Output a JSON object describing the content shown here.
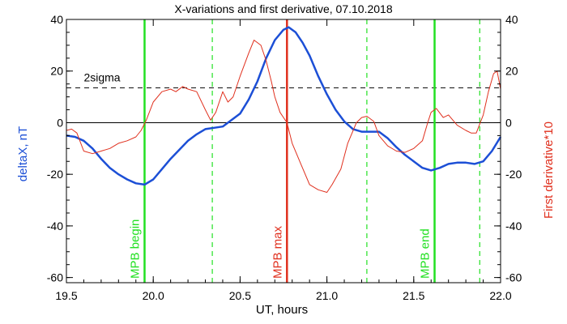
{
  "chart_data": {
    "type": "line",
    "title": "X-variations and first derivative, 07.10.2018",
    "xlabel": "UT, hours",
    "ylabel_left": "deltaX, nT",
    "ylabel_right": "First derivative*10",
    "xlim": [
      19.5,
      22.0
    ],
    "ylim": [
      -62,
      40
    ],
    "x_ticks": [
      "19.5",
      "20.0",
      "20.5",
      "21.0",
      "21.5",
      "22.0"
    ],
    "y_ticks_left": [
      "40",
      "20",
      "0",
      "-20",
      "-40",
      "-60"
    ],
    "y_ticks_right": [
      "40",
      "20",
      "0",
      "-20",
      "-40",
      "-60"
    ],
    "colors": {
      "deltaX": "#1c4fd6",
      "derivative": "#e0301e",
      "mpb": "#22e022",
      "mpb_max": "#e0301e",
      "threshold": "#000000",
      "zero": "#000000"
    },
    "threshold": {
      "label": "2sigma",
      "value": 13.5
    },
    "zero_line": 0,
    "markers": [
      {
        "x": 19.95,
        "label": "MPB begin",
        "style": "solid",
        "color_key": "mpb"
      },
      {
        "x": 20.34,
        "label": "",
        "style": "dashed",
        "color_key": "mpb"
      },
      {
        "x": 20.77,
        "label": "MPB max",
        "style": "solid",
        "color_key": "mpb_max"
      },
      {
        "x": 21.23,
        "label": "",
        "style": "dashed",
        "color_key": "mpb"
      },
      {
        "x": 21.62,
        "label": "MPB end",
        "style": "solid",
        "color_key": "mpb"
      },
      {
        "x": 21.88,
        "label": "",
        "style": "dashed",
        "color_key": "mpb"
      }
    ],
    "series": [
      {
        "key": "deltaX",
        "axis": "left",
        "width": 2.5,
        "points": [
          [
            19.5,
            -5
          ],
          [
            19.55,
            -5.5
          ],
          [
            19.6,
            -7
          ],
          [
            19.65,
            -10
          ],
          [
            19.7,
            -14
          ],
          [
            19.75,
            -17.5
          ],
          [
            19.8,
            -20
          ],
          [
            19.85,
            -22
          ],
          [
            19.9,
            -23.5
          ],
          [
            19.95,
            -24
          ],
          [
            20.0,
            -22
          ],
          [
            20.05,
            -18
          ],
          [
            20.1,
            -14
          ],
          [
            20.15,
            -10.5
          ],
          [
            20.2,
            -7
          ],
          [
            20.25,
            -4.5
          ],
          [
            20.3,
            -2.5
          ],
          [
            20.35,
            -2
          ],
          [
            20.4,
            -1.5
          ],
          [
            20.45,
            1
          ],
          [
            20.5,
            3.5
          ],
          [
            20.55,
            9
          ],
          [
            20.6,
            16
          ],
          [
            20.65,
            25
          ],
          [
            20.7,
            32
          ],
          [
            20.75,
            36
          ],
          [
            20.78,
            37
          ],
          [
            20.82,
            35
          ],
          [
            20.86,
            31
          ],
          [
            20.9,
            26
          ],
          [
            20.95,
            18
          ],
          [
            21.0,
            11
          ],
          [
            21.05,
            5
          ],
          [
            21.1,
            0.5
          ],
          [
            21.15,
            -2.5
          ],
          [
            21.2,
            -3.5
          ],
          [
            21.25,
            -3.5
          ],
          [
            21.3,
            -3.5
          ],
          [
            21.35,
            -6
          ],
          [
            21.4,
            -9.5
          ],
          [
            21.45,
            -12.5
          ],
          [
            21.5,
            -15
          ],
          [
            21.55,
            -17.5
          ],
          [
            21.6,
            -18.5
          ],
          [
            21.65,
            -17.5
          ],
          [
            21.7,
            -16
          ],
          [
            21.75,
            -15.5
          ],
          [
            21.8,
            -15.5
          ],
          [
            21.85,
            -16
          ],
          [
            21.9,
            -15
          ],
          [
            21.95,
            -11
          ],
          [
            22.0,
            -5.5
          ]
        ]
      },
      {
        "key": "derivative",
        "axis": "right",
        "width": 1,
        "points": [
          [
            19.5,
            -3
          ],
          [
            19.53,
            -2.5
          ],
          [
            19.56,
            -4
          ],
          [
            19.6,
            -11
          ],
          [
            19.65,
            -12
          ],
          [
            19.7,
            -11
          ],
          [
            19.75,
            -10
          ],
          [
            19.8,
            -8
          ],
          [
            19.85,
            -7
          ],
          [
            19.9,
            -5.5
          ],
          [
            19.93,
            -3
          ],
          [
            19.96,
            1
          ],
          [
            20.0,
            8
          ],
          [
            20.05,
            12
          ],
          [
            20.1,
            13
          ],
          [
            20.13,
            12
          ],
          [
            20.17,
            14
          ],
          [
            20.2,
            13
          ],
          [
            20.25,
            12
          ],
          [
            20.3,
            5
          ],
          [
            20.33,
            1
          ],
          [
            20.36,
            4
          ],
          [
            20.4,
            12
          ],
          [
            20.43,
            8
          ],
          [
            20.46,
            10
          ],
          [
            20.5,
            18
          ],
          [
            20.55,
            27
          ],
          [
            20.58,
            32
          ],
          [
            20.62,
            30
          ],
          [
            20.65,
            24
          ],
          [
            20.68,
            16
          ],
          [
            20.7,
            10
          ],
          [
            20.73,
            4
          ],
          [
            20.77,
            0
          ],
          [
            20.8,
            -8
          ],
          [
            20.85,
            -16
          ],
          [
            20.9,
            -24
          ],
          [
            20.95,
            -26
          ],
          [
            21.0,
            -27
          ],
          [
            21.03,
            -24
          ],
          [
            21.08,
            -18
          ],
          [
            21.12,
            -8
          ],
          [
            21.17,
            0
          ],
          [
            21.2,
            2
          ],
          [
            21.23,
            2.5
          ],
          [
            21.27,
            0.5
          ],
          [
            21.3,
            -5
          ],
          [
            21.35,
            -9
          ],
          [
            21.4,
            -11
          ],
          [
            21.45,
            -11.5
          ],
          [
            21.5,
            -10
          ],
          [
            21.55,
            -7
          ],
          [
            21.58,
            0
          ],
          [
            21.6,
            4
          ],
          [
            21.63,
            5.5
          ],
          [
            21.67,
            2
          ],
          [
            21.7,
            3
          ],
          [
            21.75,
            -1
          ],
          [
            21.8,
            -3
          ],
          [
            21.83,
            -4
          ],
          [
            21.86,
            -4
          ],
          [
            21.9,
            3
          ],
          [
            21.93,
            12
          ],
          [
            21.96,
            19
          ],
          [
            21.98,
            20
          ],
          [
            22.0,
            13
          ]
        ]
      }
    ]
  }
}
